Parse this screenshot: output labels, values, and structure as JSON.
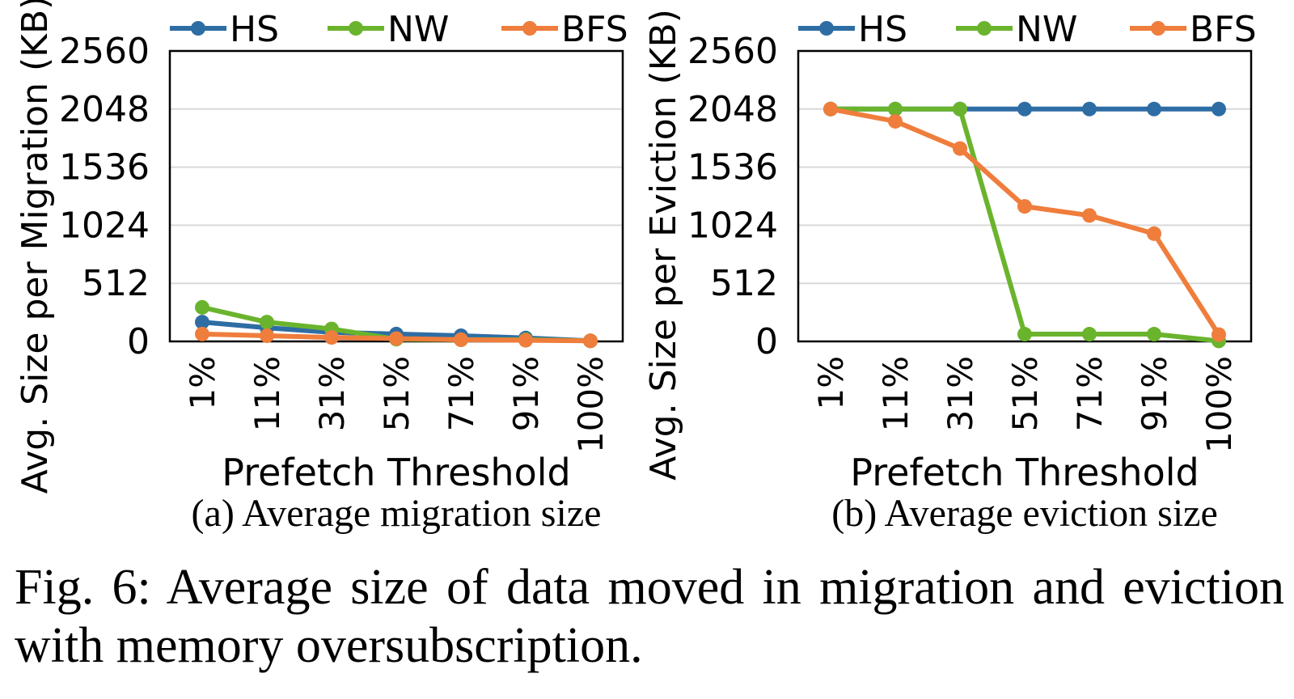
{
  "chart_data": [
    {
      "type": "line",
      "panel_label": "(a) Average migration size",
      "xlabel": "Prefetch Threshold",
      "ylabel": "Avg. Size per Migration (KB)",
      "categories": [
        "1%",
        "11%",
        "31%",
        "51%",
        "71%",
        "91%",
        "100%"
      ],
      "yticks": [
        "0",
        "512",
        "1024",
        "1536",
        "2048",
        "2560"
      ],
      "ylim": [
        0,
        2560
      ],
      "grid": true,
      "legend_position": "top",
      "series": [
        {
          "name": "HS",
          "color": "#2e6da4",
          "values": [
            170,
            120,
            80,
            65,
            50,
            30,
            5
          ]
        },
        {
          "name": "NW",
          "color": "#6ab42d",
          "values": [
            300,
            170,
            110,
            20,
            15,
            15,
            5
          ]
        },
        {
          "name": "BFS",
          "color": "#ef7d3c",
          "values": [
            65,
            50,
            35,
            25,
            15,
            10,
            5
          ]
        }
      ]
    },
    {
      "type": "line",
      "panel_label": "(b) Average eviction size",
      "xlabel": "Prefetch Threshold",
      "ylabel": "Avg. Size per Eviction (KB)",
      "categories": [
        "1%",
        "11%",
        "31%",
        "51%",
        "71%",
        "91%",
        "100%"
      ],
      "yticks": [
        "0",
        "512",
        "1024",
        "1536",
        "2048",
        "2560"
      ],
      "ylim": [
        0,
        2560
      ],
      "grid": true,
      "legend_position": "top",
      "series": [
        {
          "name": "HS",
          "color": "#2e6da4",
          "values": [
            2048,
            2048,
            2048,
            2048,
            2048,
            2048,
            2048
          ]
        },
        {
          "name": "NW",
          "color": "#6ab42d",
          "values": [
            2048,
            2048,
            2048,
            64,
            64,
            64,
            4
          ]
        },
        {
          "name": "BFS",
          "color": "#ef7d3c",
          "values": [
            2048,
            1940,
            1700,
            1190,
            1110,
            950,
            60
          ]
        }
      ]
    }
  ],
  "figure_caption": "Fig. 6: Average size of data moved in migration and eviction with memory oversubscription."
}
